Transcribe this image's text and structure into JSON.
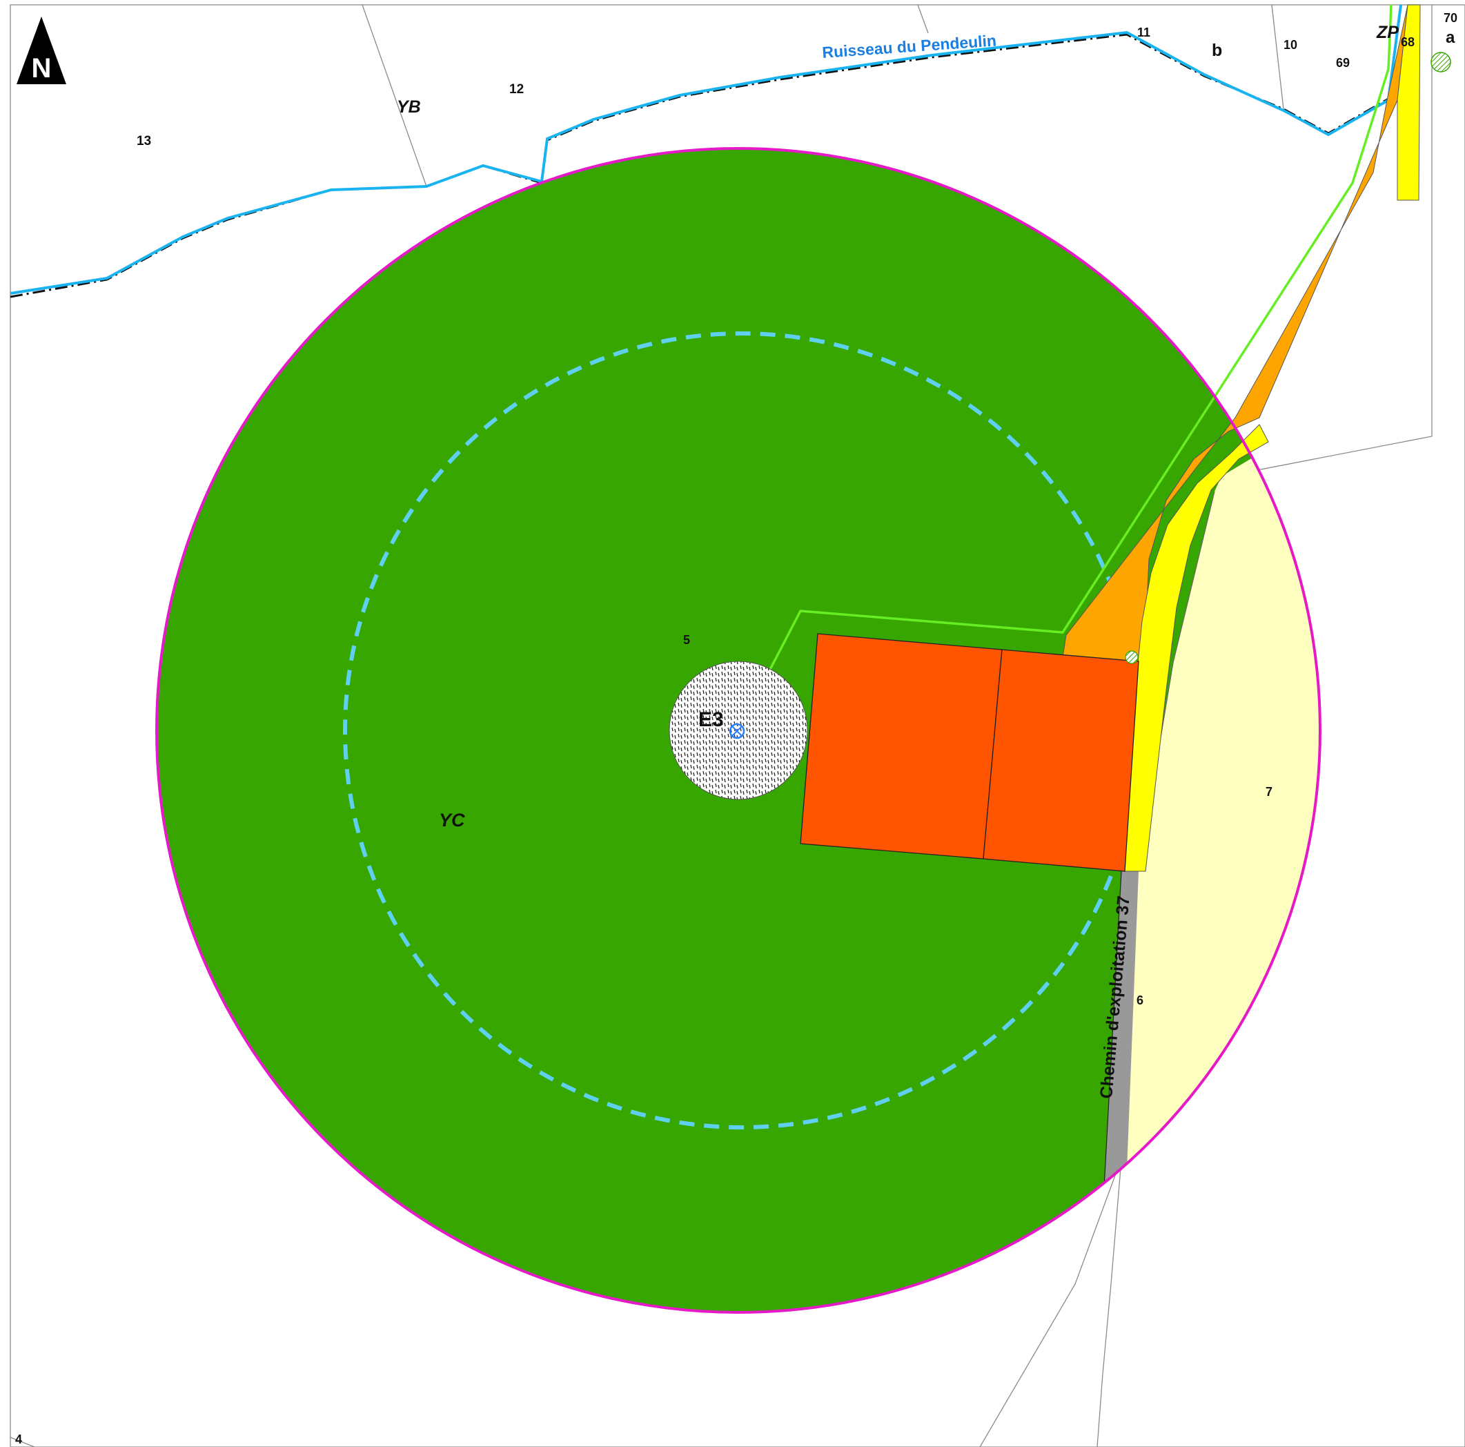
{
  "north_arrow": {
    "letter": "N"
  },
  "stream": {
    "name": "Ruisseau du Pendeulin"
  },
  "road": {
    "name": "Chemin d'exploitation 37"
  },
  "turbine": {
    "label": "E3"
  },
  "sections": {
    "yb": "YB",
    "yc": "YC",
    "zp": "ZP"
  },
  "parcels": {
    "p13": "13",
    "p12": "12",
    "p11": "11",
    "pb": "b",
    "p10": "10",
    "p69": "69",
    "p68": "68",
    "p70": "70",
    "pa": "a",
    "p5": "5",
    "p7": "7",
    "p6": "6",
    "p4": "4"
  },
  "colors": {
    "zone_fill": "#37a600",
    "zone_border": "#e619c8",
    "inner_ring": "#5fd0f0",
    "stream": "#19b4f0",
    "stream_label": "#1a7fe0",
    "platform": "#ff5500",
    "access_orange": "#ffa500",
    "access_yellow": "#ffff00",
    "cable": "#66ee22",
    "parcel_cream": "#ffffc0",
    "road_gray": "#999999"
  }
}
